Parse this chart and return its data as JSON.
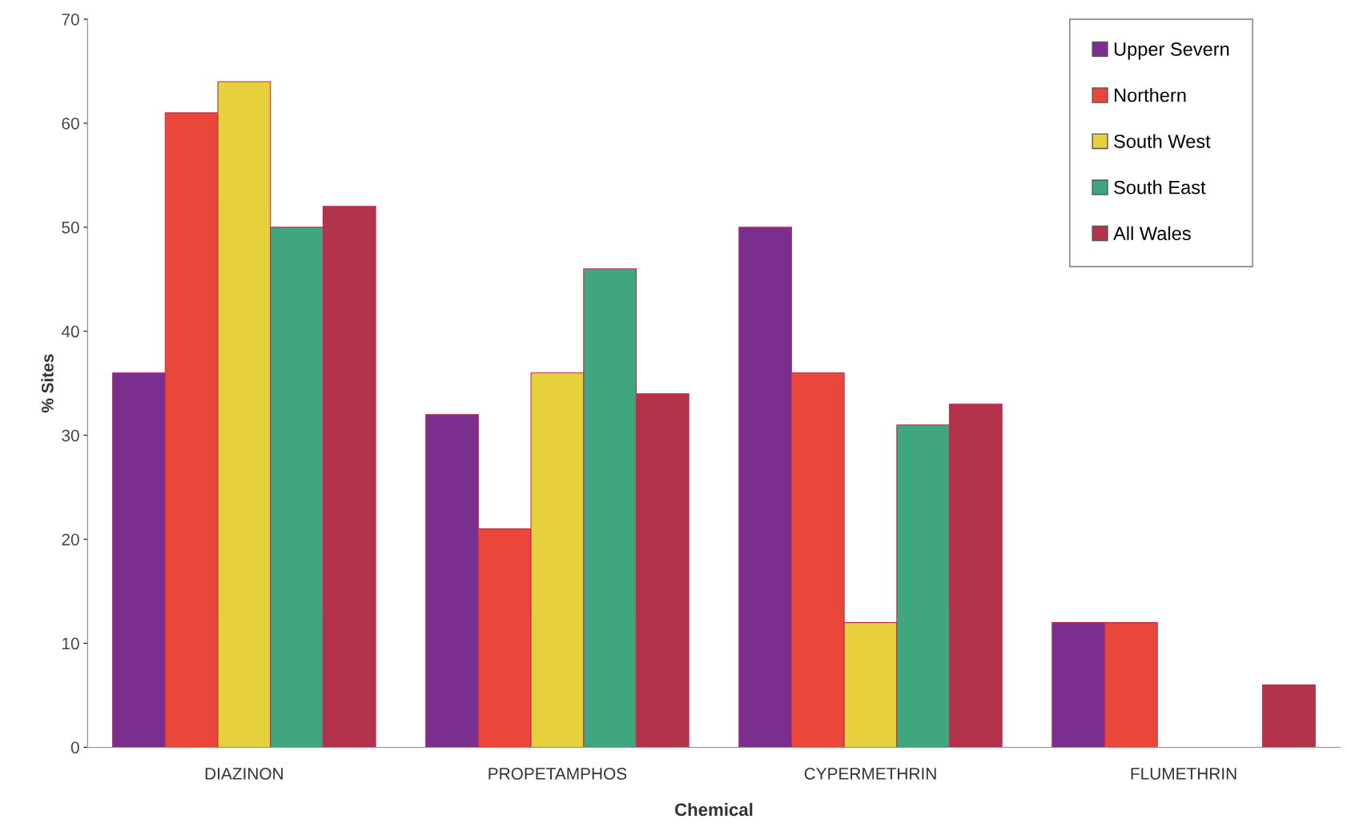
{
  "chart_data": {
    "type": "bar",
    "xlabel": "Chemical",
    "ylabel": "% Sites",
    "categories": [
      "DIAZINON",
      "PROPETAMPHOS",
      "CYPERMETHRIN",
      "FLUMETHRIN"
    ],
    "series": [
      {
        "name": "Upper Severn",
        "color": "#7a2e8e",
        "values": [
          36,
          32,
          50,
          12
        ]
      },
      {
        "name": "Northern",
        "color": "#e8473a",
        "values": [
          61,
          21,
          36,
          12
        ]
      },
      {
        "name": "South West",
        "color": "#e6d03c",
        "values": [
          64,
          36,
          12,
          null
        ]
      },
      {
        "name": "South East",
        "color": "#3fa680",
        "values": [
          50,
          46,
          31,
          null
        ]
      },
      {
        "name": "All Wales",
        "color": "#b3344a",
        "values": [
          52,
          34,
          33,
          6
        ]
      }
    ],
    "ylim": [
      0,
      70
    ],
    "yticks": [
      0,
      10,
      20,
      30,
      40,
      50,
      60,
      70
    ],
    "grid": false,
    "legend": "top right"
  }
}
